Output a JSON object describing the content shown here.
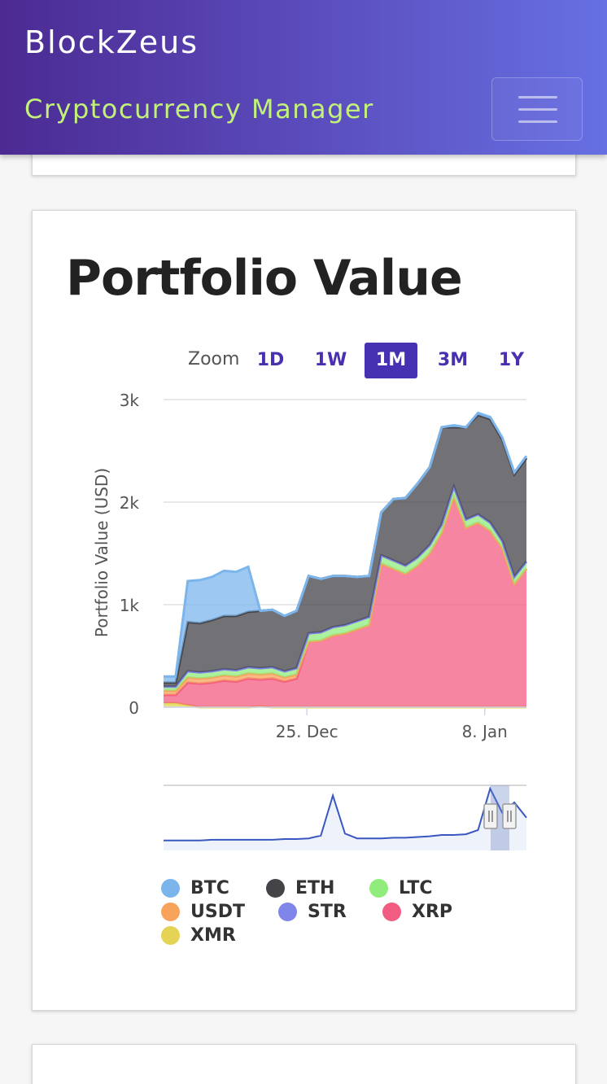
{
  "navbar": {
    "brand": "BlockZeus",
    "subtitle": "Cryptocurrency Manager",
    "menu_icon": "hamburger-icon"
  },
  "portfolio": {
    "title": "Portfolio Value",
    "zoom": {
      "label": "Zoom",
      "options": [
        "1D",
        "1W",
        "1M",
        "3M",
        "1Y"
      ],
      "selected": "1M"
    }
  },
  "colors": {
    "BTC": "#7cb5ec",
    "ETH": "#434348",
    "LTC": "#90ed7d",
    "USDT": "#f7a35c",
    "STR": "#8085e9",
    "XRP": "#f15c80",
    "XMR": "#e4d354",
    "navigator_line": "#3857c0",
    "accent": "#4531b1"
  },
  "chart_data": {
    "type": "area",
    "stacked": true,
    "ylabel": "Portfolio Value (USD)",
    "ylim": [
      0,
      3000
    ],
    "y_ticks": [
      "0",
      "1k",
      "2k",
      "3k"
    ],
    "x_ticks": [
      "25. Dec",
      "8. Jan"
    ],
    "grid": true,
    "legend_position": "bottom",
    "legend": [
      "BTC",
      "ETH",
      "LTC",
      "USDT",
      "STR",
      "XRP",
      "XMR"
    ],
    "x": [
      0,
      1,
      2,
      3,
      4,
      5,
      6,
      7,
      8,
      9,
      10,
      11,
      12,
      13,
      14,
      15,
      16,
      17,
      18,
      19,
      20,
      21,
      22,
      23,
      24,
      25,
      26,
      27,
      28,
      29,
      30
    ],
    "series": [
      {
        "name": "XMR",
        "values": [
          40,
          40,
          20,
          0,
          0,
          0,
          0,
          0,
          10,
          0,
          0,
          0,
          0,
          0,
          0,
          0,
          0,
          0,
          0,
          0,
          0,
          0,
          0,
          0,
          0,
          0,
          0,
          0,
          0,
          0,
          0
        ]
      },
      {
        "name": "XRP",
        "values": [
          80,
          80,
          220,
          230,
          240,
          260,
          250,
          280,
          260,
          280,
          250,
          280,
          640,
          650,
          700,
          720,
          760,
          800,
          1400,
          1350,
          1300,
          1380,
          1500,
          1700,
          2050,
          1750,
          1800,
          1720,
          1550,
          1200,
          1350
        ]
      },
      {
        "name": "USDT",
        "values": [
          40,
          40,
          50,
          50,
          50,
          50,
          50,
          50,
          50,
          50,
          40,
          40,
          0,
          0,
          0,
          0,
          0,
          0,
          0,
          0,
          0,
          0,
          0,
          0,
          0,
          0,
          0,
          0,
          0,
          0,
          0
        ]
      },
      {
        "name": "LTC",
        "values": [
          40,
          40,
          60,
          60,
          60,
          60,
          60,
          60,
          60,
          60,
          60,
          60,
          80,
          80,
          80,
          80,
          80,
          80,
          80,
          80,
          80,
          80,
          80,
          80,
          100,
          80,
          80,
          80,
          70,
          70,
          70
        ]
      },
      {
        "name": "STR",
        "values": [
          0,
          0,
          0,
          0,
          0,
          0,
          0,
          0,
          0,
          0,
          0,
          0,
          0,
          0,
          0,
          0,
          0,
          0,
          0,
          0,
          0,
          0,
          0,
          0,
          0,
          0,
          0,
          0,
          0,
          0,
          0
        ]
      },
      {
        "name": "ETH",
        "values": [
          40,
          40,
          480,
          480,
          500,
          520,
          530,
          540,
          560,
          560,
          540,
          560,
          560,
          520,
          500,
          480,
          430,
          400,
          420,
          600,
          660,
          720,
          760,
          950,
          580,
          900,
          970,
          1010,
          990,
          1000,
          1010
        ]
      },
      {
        "name": "BTC",
        "values": [
          60,
          60,
          400,
          420,
          420,
          440,
          430,
          440,
          0,
          0,
          0,
          0,
          0,
          0,
          0,
          0,
          0,
          0,
          0,
          0,
          0,
          0,
          0,
          0,
          20,
          0,
          20,
          20,
          20,
          20,
          20
        ]
      }
    ],
    "navigator_values": [
      5,
      5,
      5,
      5,
      6,
      6,
      6,
      6,
      6,
      6,
      7,
      7,
      8,
      12,
      70,
      15,
      8,
      8,
      8,
      9,
      9,
      10,
      11,
      13,
      13,
      14,
      20,
      80,
      45,
      60,
      38
    ]
  },
  "legend_items": [
    {
      "label": "BTC",
      "key": "BTC"
    },
    {
      "label": "ETH",
      "key": "ETH"
    },
    {
      "label": "LTC",
      "key": "LTC"
    },
    {
      "label": "USDT",
      "key": "USDT"
    },
    {
      "label": "STR",
      "key": "STR"
    },
    {
      "label": "XRP",
      "key": "XRP"
    },
    {
      "label": "XMR",
      "key": "XMR"
    }
  ]
}
